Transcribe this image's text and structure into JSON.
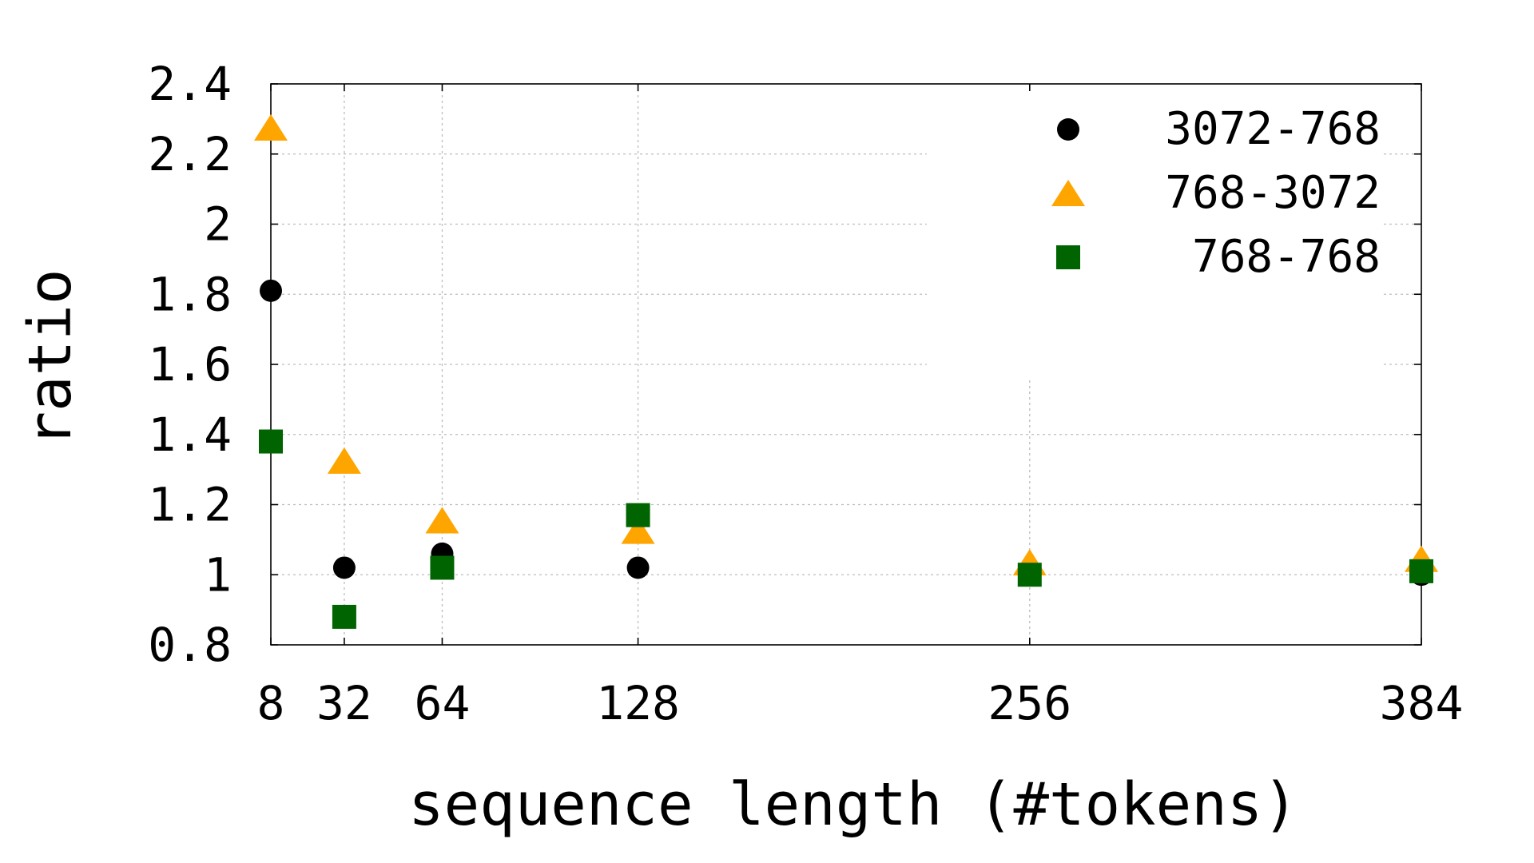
{
  "chart_data": {
    "type": "scatter",
    "title": "",
    "xlabel": "sequence length (#tokens)",
    "ylabel": "ratio",
    "x_ticks": [
      8,
      32,
      64,
      128,
      256,
      384
    ],
    "x_tick_labels": [
      "8",
      "32",
      "64",
      "128",
      "256",
      "384"
    ],
    "xlim": [
      8,
      384
    ],
    "y_ticks": [
      0.8,
      1,
      1.2,
      1.4,
      1.6,
      1.8,
      2,
      2.2,
      2.4
    ],
    "y_tick_labels": [
      "0.8",
      "1",
      "1.2",
      "1.4",
      "1.6",
      "1.8",
      "2",
      "2.2",
      "2.4"
    ],
    "ylim": [
      0.8,
      2.4
    ],
    "grid": true,
    "legend_position": "top-right",
    "series": [
      {
        "name": "3072-768",
        "marker": "circle",
        "color": "#000000",
        "x": [
          8,
          32,
          64,
          128,
          256,
          384
        ],
        "y": [
          1.81,
          1.02,
          1.06,
          1.02,
          1.0,
          1.0
        ]
      },
      {
        "name": "768-3072",
        "marker": "triangle",
        "color": "#ffa500",
        "x": [
          8,
          32,
          64,
          128,
          256,
          384
        ],
        "y": [
          2.27,
          1.32,
          1.15,
          1.12,
          1.03,
          1.04
        ]
      },
      {
        "name": "768-768",
        "marker": "square",
        "color": "#006400",
        "x": [
          8,
          32,
          64,
          128,
          256,
          384
        ],
        "y": [
          1.38,
          0.88,
          1.02,
          1.17,
          1.0,
          1.01
        ]
      }
    ]
  }
}
